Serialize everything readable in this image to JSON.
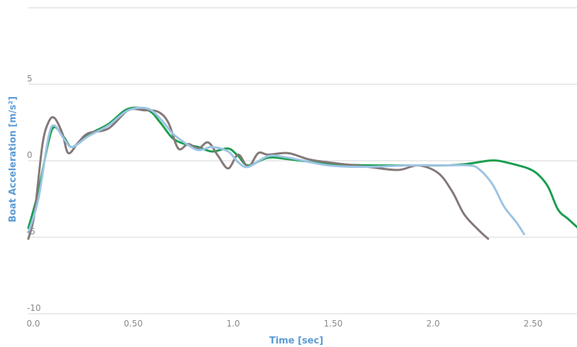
{
  "chart_data": {
    "type": "line",
    "title": "",
    "xlabel": "Time [sec]",
    "ylabel": "Boat Acceleration [m/s²]",
    "xlim": [
      0,
      2.75
    ],
    "ylim": [
      -10,
      10
    ],
    "x_ticks": [
      {
        "value": 0.0,
        "label": "0.0"
      },
      {
        "value": 0.5,
        "label": "0.50"
      },
      {
        "value": 1.0,
        "label": "1.0"
      },
      {
        "value": 1.5,
        "label": "1.50"
      },
      {
        "value": 2.0,
        "label": "2.0"
      },
      {
        "value": 2.5,
        "label": "2.50"
      }
    ],
    "y_ticks": [
      {
        "value": 5,
        "label": "5"
      },
      {
        "value": 0,
        "label": "0"
      },
      {
        "value": -5,
        "label": "-5"
      },
      {
        "value": -10,
        "label": "-10"
      }
    ],
    "grid": true,
    "legend": "none",
    "series": [
      {
        "color": "#1a9e4f",
        "x": [
          0.0,
          0.05,
          0.1,
          0.13,
          0.18,
          0.22,
          0.3,
          0.4,
          0.5,
          0.6,
          0.66,
          0.72,
          0.78,
          0.85,
          0.92,
          1.0,
          1.05,
          1.1,
          1.2,
          1.3,
          1.5,
          1.7,
          1.9,
          2.1,
          2.2,
          2.3,
          2.35,
          2.42,
          2.5,
          2.55,
          2.6,
          2.65,
          2.7,
          2.75
        ],
        "y": [
          -4.4,
          -2.0,
          1.2,
          2.2,
          1.5,
          0.9,
          1.7,
          2.4,
          3.4,
          3.3,
          2.5,
          1.5,
          1.1,
          0.9,
          0.6,
          0.8,
          0.3,
          -0.3,
          0.2,
          0.1,
          -0.2,
          -0.3,
          -0.3,
          -0.3,
          -0.2,
          0.0,
          0.0,
          -0.2,
          -0.5,
          -0.9,
          -1.7,
          -3.2,
          -3.8,
          -4.4
        ]
      },
      {
        "color": "#847878",
        "x": [
          0.0,
          0.03,
          0.07,
          0.1,
          0.13,
          0.17,
          0.2,
          0.25,
          0.3,
          0.4,
          0.5,
          0.58,
          0.65,
          0.7,
          0.75,
          0.8,
          0.85,
          0.9,
          0.95,
          1.0,
          1.05,
          1.1,
          1.15,
          1.2,
          1.3,
          1.4,
          1.5,
          1.7,
          1.85,
          1.95,
          2.05,
          2.12,
          2.18,
          2.25,
          2.3
        ],
        "y": [
          -5.1,
          -3.5,
          1.0,
          2.5,
          2.8,
          1.8,
          0.5,
          1.2,
          1.8,
          2.1,
          3.3,
          3.3,
          3.2,
          2.5,
          0.8,
          1.1,
          0.8,
          1.2,
          0.3,
          -0.5,
          0.4,
          -0.4,
          0.5,
          0.4,
          0.5,
          0.1,
          -0.1,
          -0.4,
          -0.6,
          -0.3,
          -0.8,
          -2.0,
          -3.5,
          -4.5,
          -5.1
        ]
      },
      {
        "color": "#9cc4e4",
        "x": [
          0.0,
          0.05,
          0.1,
          0.13,
          0.18,
          0.22,
          0.3,
          0.4,
          0.5,
          0.6,
          0.67,
          0.72,
          0.78,
          0.85,
          0.92,
          1.0,
          1.05,
          1.1,
          1.2,
          1.3,
          1.5,
          1.7,
          1.9,
          2.1,
          2.2,
          2.25,
          2.32,
          2.38,
          2.44,
          2.48
        ],
        "y": [
          -4.7,
          -2.5,
          1.5,
          2.3,
          1.4,
          0.9,
          1.6,
          2.3,
          3.3,
          3.4,
          2.6,
          1.8,
          1.2,
          0.7,
          0.9,
          0.6,
          -0.1,
          -0.4,
          0.3,
          0.2,
          -0.3,
          -0.4,
          -0.3,
          -0.3,
          -0.3,
          -0.5,
          -1.5,
          -3.0,
          -4.0,
          -4.8
        ]
      }
    ]
  }
}
